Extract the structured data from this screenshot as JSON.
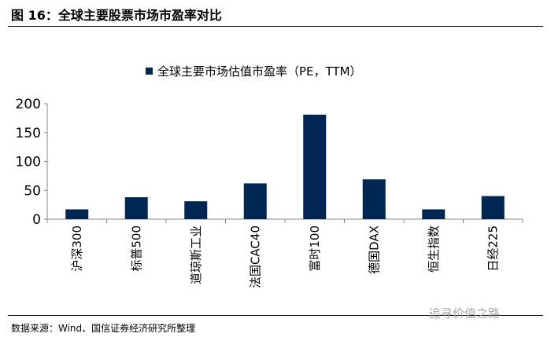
{
  "figure_title": "图 16：全球主要股票市场市盈率对比",
  "source": "数据来源：Wind、国信证券经济研究所整理",
  "watermark": "追寻价值之路",
  "chart_data": {
    "type": "bar",
    "title": "",
    "categories": [
      "沪深300",
      "标普500",
      "道琼斯工业",
      "法国CAC40",
      "富时100",
      "德国DAX",
      "恒生指数",
      "日经225"
    ],
    "series": [
      {
        "name": "全球主要市场估值市盈率（PE，TTM）",
        "values": [
          17,
          38,
          31,
          62,
          181,
          69,
          17,
          40
        ],
        "color": "#002654"
      }
    ],
    "yticks": [
      0,
      50,
      100,
      150,
      200
    ],
    "ylim": [
      0,
      200
    ],
    "grid": false,
    "legend": "top-center"
  }
}
